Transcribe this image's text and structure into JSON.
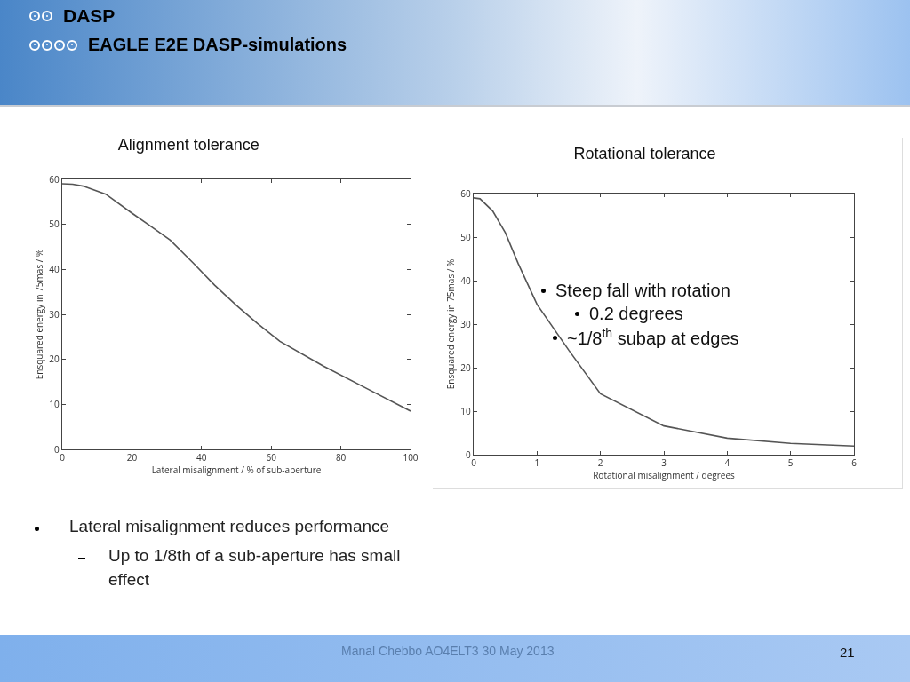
{
  "chart_data": [
    {
      "type": "line",
      "title": "Alignment tolerance",
      "xlabel": "Lateral misalignment / % of sub-aperture",
      "ylabel": "Ensquared energy in 75mas / %",
      "x": [
        0,
        3,
        6,
        12.5,
        20,
        25,
        31,
        37.5,
        43.75,
        50,
        56,
        62.5,
        75,
        87.5,
        100
      ],
      "series": [
        {
          "color": "#555555",
          "values": [
            59,
            58.9,
            58.5,
            56.7,
            52.5,
            49.8,
            46.5,
            41.5,
            36.5,
            32,
            28,
            24,
            18.5,
            13.5,
            8.5
          ]
        }
      ],
      "xlim": [
        0,
        100
      ],
      "xticks": [
        0,
        20,
        40,
        60,
        80,
        100
      ],
      "ylim": [
        0,
        60
      ],
      "yticks": [
        0,
        10,
        20,
        30,
        40,
        50,
        60
      ],
      "grid": false,
      "legend": false,
      "marker": "none",
      "line_style": "solid"
    },
    {
      "type": "line",
      "title": "Rotational tolerance",
      "xlabel": "Rotational misalignment / degrees",
      "ylabel": "Ensquared energy in 75mas / %",
      "x": [
        0,
        0.1,
        0.3,
        0.5,
        0.7,
        1,
        1.5,
        2,
        3,
        4,
        5,
        6
      ],
      "series": [
        {
          "color": "#555555",
          "values": [
            59,
            58.8,
            56,
            51,
            44,
            34.5,
            24,
            14,
            6.6,
            3.8,
            2.6,
            2
          ]
        }
      ],
      "xlim": [
        0,
        6
      ],
      "xticks": [
        0,
        1,
        2,
        3,
        4,
        5,
        6
      ],
      "ylim": [
        0,
        60
      ],
      "yticks": [
        0,
        10,
        20,
        30,
        40,
        50,
        60
      ],
      "grid": false,
      "legend": false,
      "marker": "none",
      "line_style": "solid",
      "annotations": [
        "Steep fall with rotation",
        "0.2 degrees",
        "~1/8$^{th}$ subap at edges"
      ]
    },
    {
      "type": "other",
      "title": "DASP",
      "subtitle": "EAGLE E2E DASP-simulations",
      "annotations": [
        "Lateral misalignment reduces performance",
        "Up to 1/8th of a sub-aperture has small effect",
        "Manal Chebbo AO4ELT3 30 May 2013",
        "21"
      ]
    }
  ]
}
